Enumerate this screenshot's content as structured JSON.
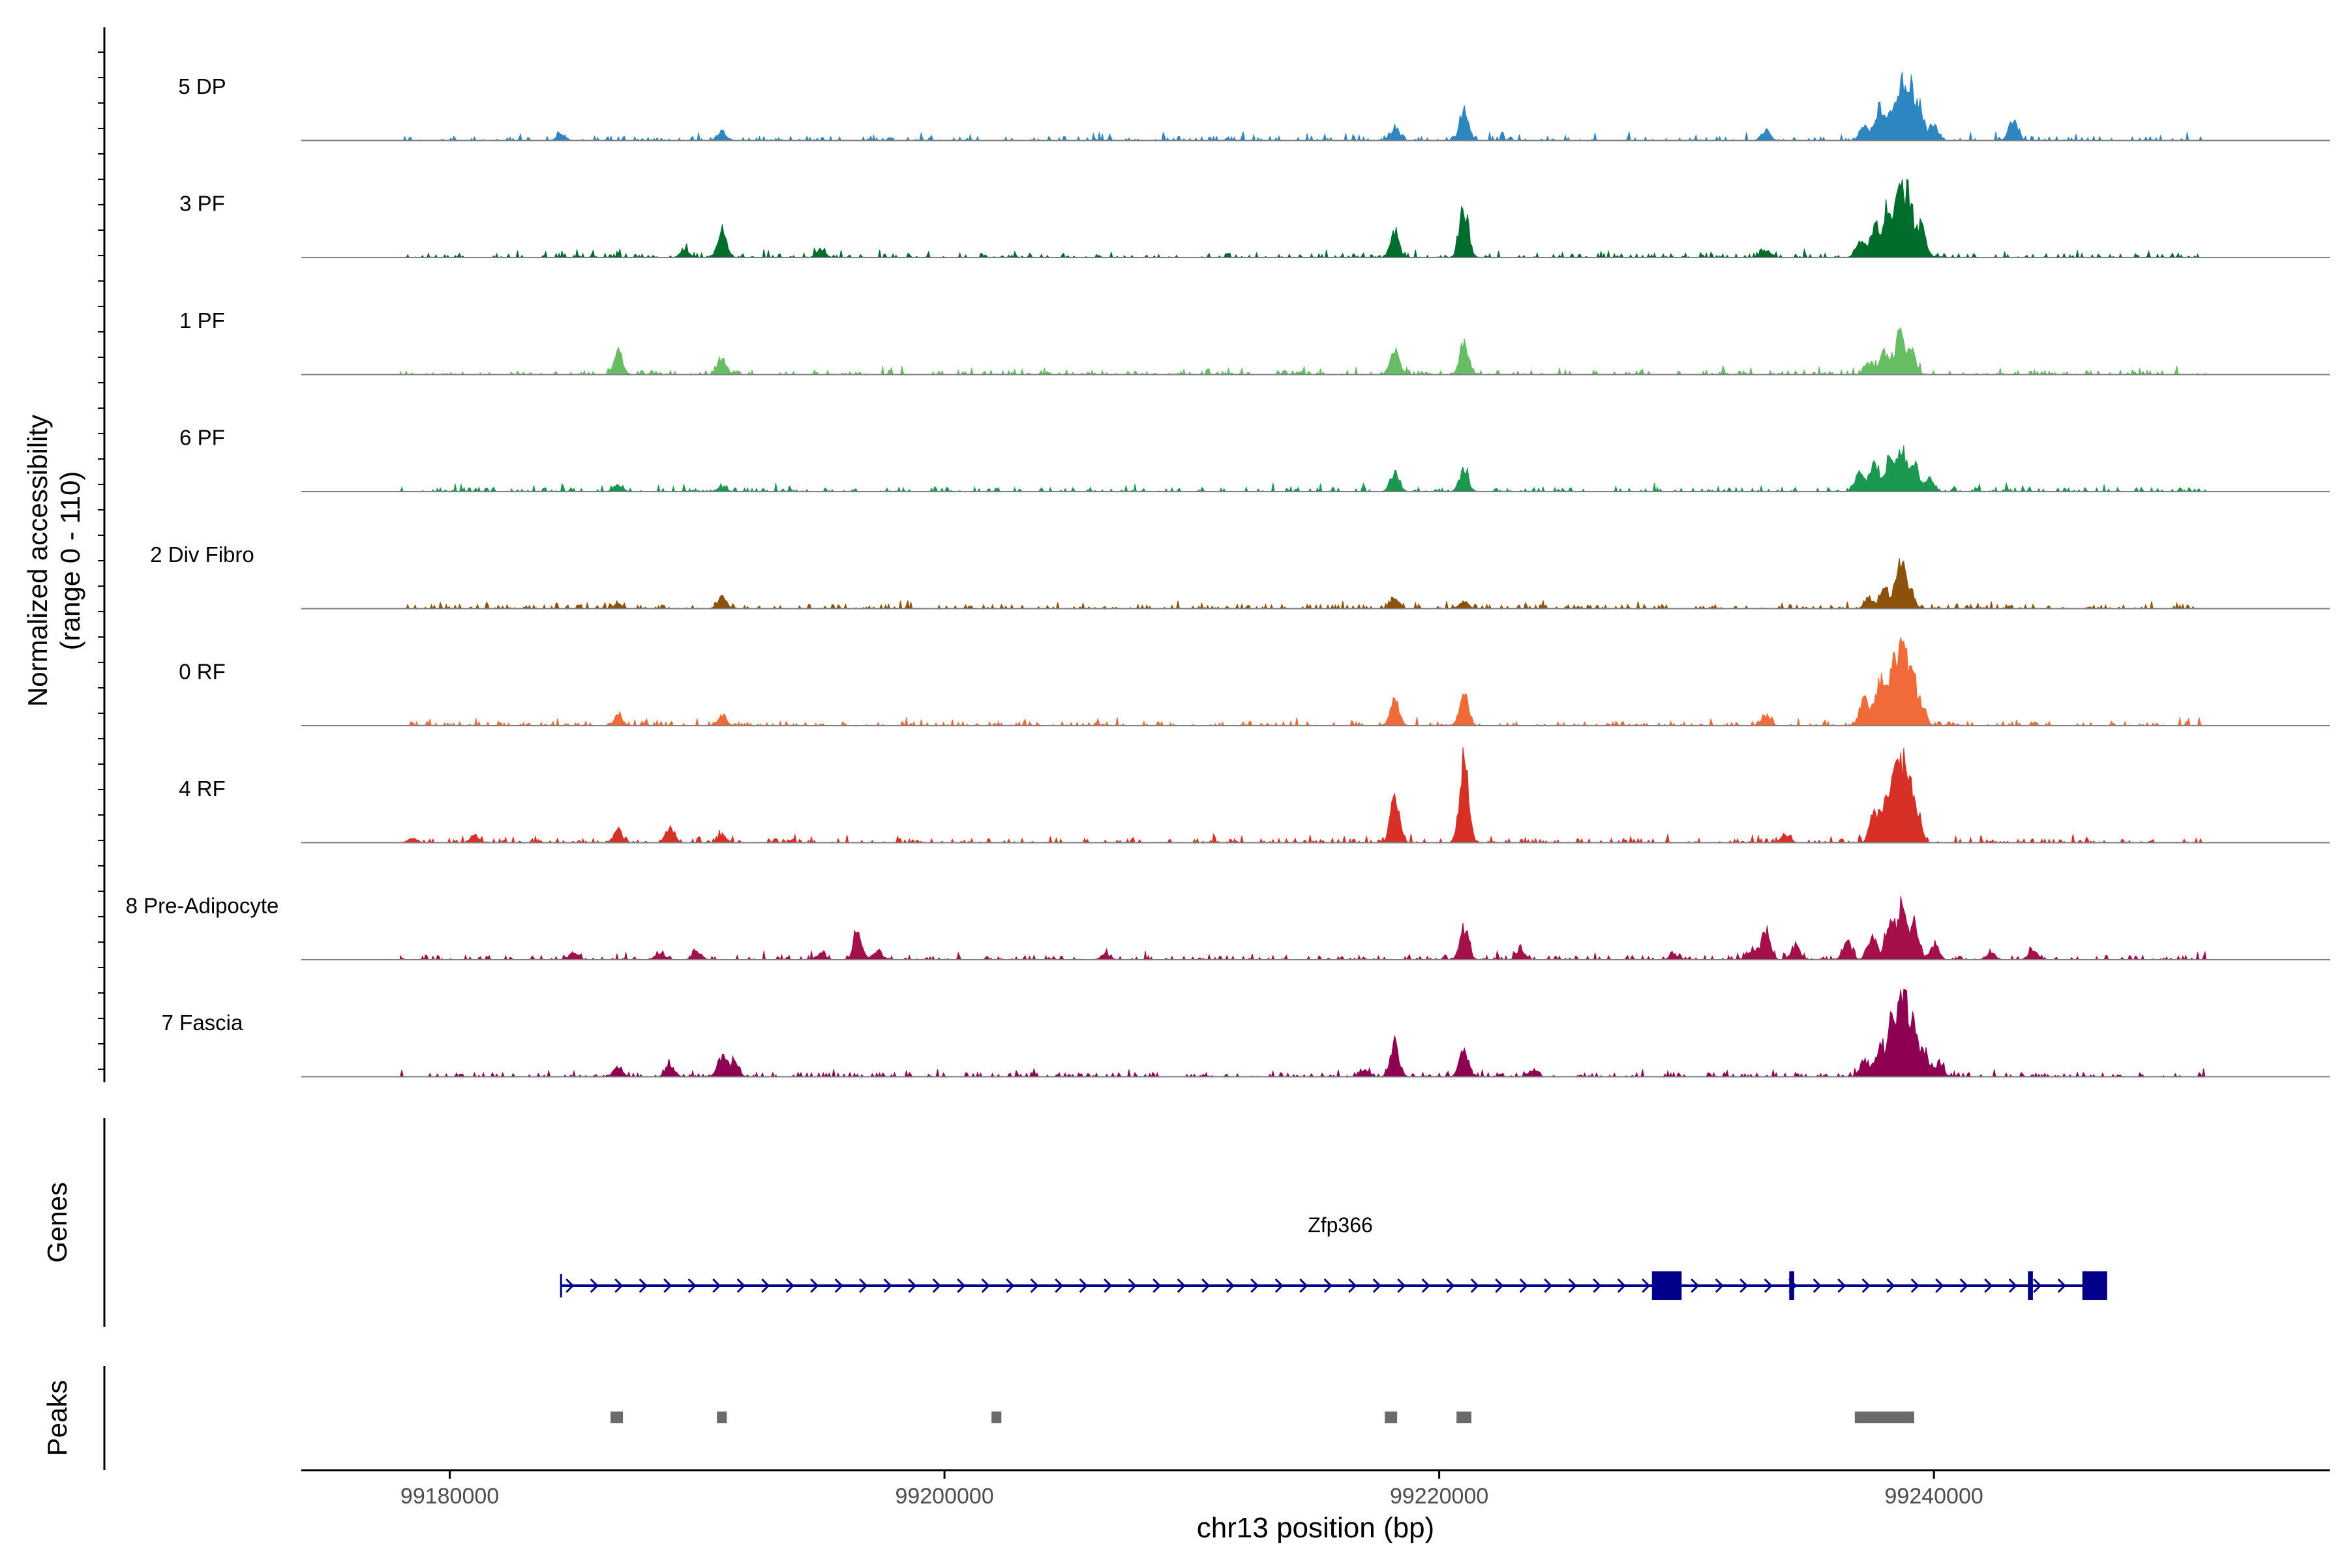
{
  "chart_data": {
    "type": "area",
    "title": "",
    "accessibility_label": {
      "line1": "Normalized accessibility",
      "line2": "(range 0 - 110)"
    },
    "y_range": [
      0,
      110
    ],
    "xlabel": "chr13 position (bp)",
    "xlim": [
      99174000,
      99256000
    ],
    "x_ticks": [
      99180000,
      99200000,
      99220000,
      99240000
    ],
    "x_tick_labels": [
      "99180000",
      "99200000",
      "99220000",
      "99240000"
    ],
    "genes_label": "Genes",
    "peaks_label": "Peaks",
    "tracks": [
      {
        "name": "5 DP",
        "color": "#2E86C1",
        "peaks": [
          {
            "x": 99221000,
            "h": 26
          },
          {
            "x": 99218200,
            "h": 10
          },
          {
            "x": 99191000,
            "h": 8
          },
          {
            "x": 99184500,
            "h": 5
          },
          {
            "x": 99233200,
            "h": 8
          },
          {
            "x": 99243200,
            "h": 18
          },
          {
            "x": 99237200,
            "h": 12
          },
          {
            "x": 99237800,
            "h": 28
          },
          {
            "x": 99238300,
            "h": 20
          },
          {
            "x": 99238700,
            "h": 40
          },
          {
            "x": 99239000,
            "h": 36
          },
          {
            "x": 99239400,
            "h": 28
          },
          {
            "x": 99240000,
            "h": 12
          }
        ]
      },
      {
        "name": "3 PF",
        "color": "#006D2C",
        "peaks": [
          {
            "x": 99191000,
            "h": 22
          },
          {
            "x": 99221000,
            "h": 42
          },
          {
            "x": 99218200,
            "h": 20
          },
          {
            "x": 99233200,
            "h": 6
          },
          {
            "x": 99237000,
            "h": 14
          },
          {
            "x": 99237600,
            "h": 24
          },
          {
            "x": 99238100,
            "h": 40
          },
          {
            "x": 99238600,
            "h": 52
          },
          {
            "x": 99239000,
            "h": 48
          },
          {
            "x": 99239500,
            "h": 24
          },
          {
            "x": 99189500,
            "h": 6
          },
          {
            "x": 99195000,
            "h": 6
          }
        ]
      },
      {
        "name": "1 PF",
        "color": "#66BD63",
        "peaks": [
          {
            "x": 99186800,
            "h": 20
          },
          {
            "x": 99191000,
            "h": 14
          },
          {
            "x": 99218200,
            "h": 24
          },
          {
            "x": 99221000,
            "h": 26
          },
          {
            "x": 99237400,
            "h": 10
          },
          {
            "x": 99238000,
            "h": 18
          },
          {
            "x": 99238600,
            "h": 34
          },
          {
            "x": 99239100,
            "h": 18
          }
        ]
      },
      {
        "name": "6 PF",
        "color": "#1A9850",
        "peaks": [
          {
            "x": 99186800,
            "h": 6
          },
          {
            "x": 99191000,
            "h": 4
          },
          {
            "x": 99218200,
            "h": 16
          },
          {
            "x": 99221000,
            "h": 18
          },
          {
            "x": 99237000,
            "h": 16
          },
          {
            "x": 99237600,
            "h": 26
          },
          {
            "x": 99238200,
            "h": 28
          },
          {
            "x": 99238700,
            "h": 34
          },
          {
            "x": 99239200,
            "h": 22
          },
          {
            "x": 99239800,
            "h": 10
          }
        ]
      },
      {
        "name": "2 Div Fibro",
        "color": "#8C510A",
        "peaks": [
          {
            "x": 99191000,
            "h": 10
          },
          {
            "x": 99186800,
            "h": 4
          },
          {
            "x": 99218200,
            "h": 8
          },
          {
            "x": 99221000,
            "h": 6
          },
          {
            "x": 99237400,
            "h": 8
          },
          {
            "x": 99238000,
            "h": 16
          },
          {
            "x": 99238600,
            "h": 36
          },
          {
            "x": 99239000,
            "h": 18
          }
        ]
      },
      {
        "name": "0 RF",
        "color": "#F16A3A",
        "peaks": [
          {
            "x": 99186800,
            "h": 8
          },
          {
            "x": 99191000,
            "h": 8
          },
          {
            "x": 99218200,
            "h": 22
          },
          {
            "x": 99221000,
            "h": 28
          },
          {
            "x": 99233200,
            "h": 8
          },
          {
            "x": 99237200,
            "h": 24
          },
          {
            "x": 99237800,
            "h": 38
          },
          {
            "x": 99238300,
            "h": 44
          },
          {
            "x": 99238700,
            "h": 60
          },
          {
            "x": 99239100,
            "h": 40
          },
          {
            "x": 99239500,
            "h": 16
          }
        ]
      },
      {
        "name": "4 RF",
        "color": "#D73027",
        "peaks": [
          {
            "x": 99186800,
            "h": 10
          },
          {
            "x": 99188900,
            "h": 12
          },
          {
            "x": 99191000,
            "h": 6
          },
          {
            "x": 99181000,
            "h": 6
          },
          {
            "x": 99178500,
            "h": 4
          },
          {
            "x": 99218200,
            "h": 36
          },
          {
            "x": 99221000,
            "h": 68
          },
          {
            "x": 99234000,
            "h": 6
          },
          {
            "x": 99237600,
            "h": 24
          },
          {
            "x": 99238100,
            "h": 42
          },
          {
            "x": 99238500,
            "h": 64
          },
          {
            "x": 99238900,
            "h": 60
          },
          {
            "x": 99239300,
            "h": 28
          }
        ]
      },
      {
        "name": "8 Pre-Adipocyte",
        "color": "#A50F4B",
        "peaks": [
          {
            "x": 99177800,
            "h": 4
          },
          {
            "x": 99185000,
            "h": 6
          },
          {
            "x": 99188500,
            "h": 6
          },
          {
            "x": 99190000,
            "h": 7
          },
          {
            "x": 99195000,
            "h": 5
          },
          {
            "x": 99196500,
            "h": 22
          },
          {
            "x": 99197300,
            "h": 8
          },
          {
            "x": 99206500,
            "h": 5
          },
          {
            "x": 99221000,
            "h": 26
          },
          {
            "x": 99223300,
            "h": 8
          },
          {
            "x": 99229500,
            "h": 4
          },
          {
            "x": 99232600,
            "h": 8
          },
          {
            "x": 99233200,
            "h": 24
          },
          {
            "x": 99234400,
            "h": 12
          },
          {
            "x": 99236500,
            "h": 14
          },
          {
            "x": 99237500,
            "h": 18
          },
          {
            "x": 99238200,
            "h": 30
          },
          {
            "x": 99238700,
            "h": 48
          },
          {
            "x": 99239200,
            "h": 30
          },
          {
            "x": 99240000,
            "h": 12
          },
          {
            "x": 99242300,
            "h": 6
          },
          {
            "x": 99244000,
            "h": 8
          }
        ]
      },
      {
        "name": "7 Fascia",
        "color": "#8E0152",
        "peaks": [
          {
            "x": 99186800,
            "h": 8
          },
          {
            "x": 99188900,
            "h": 10
          },
          {
            "x": 99191000,
            "h": 16
          },
          {
            "x": 99191500,
            "h": 12
          },
          {
            "x": 99218200,
            "h": 26
          },
          {
            "x": 99221000,
            "h": 22
          },
          {
            "x": 99217000,
            "h": 6
          },
          {
            "x": 99223800,
            "h": 6
          },
          {
            "x": 99237200,
            "h": 14
          },
          {
            "x": 99237800,
            "h": 24
          },
          {
            "x": 99238300,
            "h": 44
          },
          {
            "x": 99238700,
            "h": 66
          },
          {
            "x": 99239100,
            "h": 44
          },
          {
            "x": 99239600,
            "h": 22
          },
          {
            "x": 99240200,
            "h": 10
          }
        ]
      }
    ],
    "gene": {
      "name": "Zfp366",
      "color": "#00008B",
      "start": 99184500,
      "end": 99246600,
      "strand": "+",
      "exons": [
        {
          "start": 99228600,
          "end": 99229800,
          "type": "box"
        },
        {
          "start": 99234150,
          "end": 99234350,
          "type": "tick"
        },
        {
          "start": 99243800,
          "end": 99244000,
          "type": "tick"
        },
        {
          "start": 99246000,
          "end": 99247000,
          "type": "box"
        }
      ]
    },
    "peak_regions": [
      {
        "start": 99186500,
        "end": 99187000
      },
      {
        "start": 99190800,
        "end": 99191200
      },
      {
        "start": 99201900,
        "end": 99202300
      },
      {
        "start": 99217800,
        "end": 99218300
      },
      {
        "start": 99220700,
        "end": 99221300
      },
      {
        "start": 99236800,
        "end": 99239200
      }
    ]
  }
}
